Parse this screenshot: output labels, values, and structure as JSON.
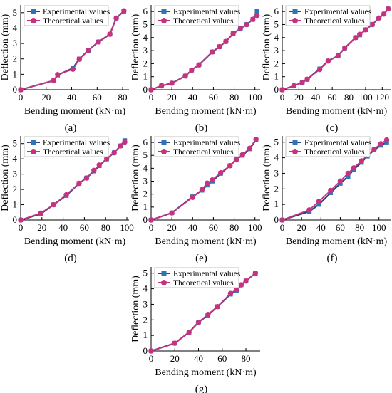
{
  "figure": {
    "xlabel": "Bending moment (kN·m)",
    "ylabel": "Deflection (mm)"
  },
  "colors": {
    "experimental": "#2e75b6",
    "experimental_line": "#2f3f7f",
    "theoretical": "#c8317e"
  },
  "legend": {
    "experimental": "Experimental values",
    "theoretical": "Theoretical values"
  },
  "chart_data": [
    {
      "type": "line",
      "panel": "(a)",
      "xlabel": "Bending moment (kN·m)",
      "ylabel": "Deflection (mm)",
      "xlim": [
        0,
        85
      ],
      "ylim": [
        0,
        5.5
      ],
      "xticks": [
        0,
        20,
        40,
        60,
        80
      ],
      "yticks": [
        0,
        1,
        2,
        3,
        4,
        5
      ],
      "legend_position": "top-left",
      "series": [
        {
          "name": "Experimental values",
          "x": [
            0,
            26,
            29,
            41,
            46,
            53,
            61,
            70,
            75,
            81
          ],
          "y": [
            0,
            0.6,
            0.95,
            1.4,
            2.0,
            2.55,
            3.1,
            3.6,
            4.65,
            5.1
          ]
        },
        {
          "name": "Theoretical values",
          "x": [
            0,
            26,
            29,
            41,
            46,
            53,
            61,
            70,
            75,
            81
          ],
          "y": [
            0,
            0.6,
            0.98,
            1.33,
            1.98,
            2.55,
            3.1,
            3.6,
            4.65,
            5.12
          ]
        }
      ]
    },
    {
      "type": "line",
      "panel": "(b)",
      "xlabel": "Bending moment (kN·m)",
      "ylabel": "Deflection (mm)",
      "xlim": [
        0,
        105
      ],
      "ylim": [
        0,
        6.5
      ],
      "xticks": [
        0,
        20,
        40,
        60,
        80,
        100
      ],
      "yticks": [
        0,
        1,
        2,
        3,
        4,
        5,
        6
      ],
      "legend_position": "top-left",
      "series": [
        {
          "name": "Experimental values",
          "x": [
            0,
            10,
            20,
            33,
            39,
            46,
            59,
            66,
            72,
            79,
            86,
            92,
            98,
            102
          ],
          "y": [
            0,
            0.3,
            0.5,
            1.05,
            1.5,
            1.9,
            2.9,
            3.3,
            3.7,
            4.3,
            4.7,
            5.0,
            5.4,
            6.0
          ]
        },
        {
          "name": "Theoretical values",
          "x": [
            0,
            10,
            20,
            33,
            39,
            46,
            59,
            66,
            72,
            79,
            86,
            92,
            98,
            102
          ],
          "y": [
            0,
            0.3,
            0.5,
            1.05,
            1.5,
            1.9,
            2.9,
            3.3,
            3.7,
            4.3,
            4.7,
            5.0,
            5.4,
            5.7
          ]
        }
      ]
    },
    {
      "type": "line",
      "panel": "(c)",
      "xlabel": "Bending moment (kN·m)",
      "ylabel": "Deflection (mm)",
      "xlim": [
        0,
        130
      ],
      "ylim": [
        0,
        6.5
      ],
      "xticks": [
        0,
        20,
        40,
        60,
        80,
        100,
        120
      ],
      "yticks": [
        0,
        1,
        2,
        3,
        4,
        5,
        6
      ],
      "legend_position": "top-left",
      "series": [
        {
          "name": "Experimental values",
          "x": [
            0,
            14,
            24,
            30,
            45,
            55,
            67,
            75,
            88,
            93,
            100,
            108,
            116,
            122,
            127
          ],
          "y": [
            0,
            0.3,
            0.55,
            0.8,
            1.6,
            2.2,
            2.6,
            3.2,
            4.0,
            4.2,
            4.6,
            5.0,
            5.5,
            5.8,
            6.2
          ]
        },
        {
          "name": "Theoretical values",
          "x": [
            0,
            14,
            24,
            30,
            45,
            55,
            67,
            75,
            88,
            93,
            100,
            108,
            116,
            122,
            127
          ],
          "y": [
            0,
            0.3,
            0.55,
            0.8,
            1.55,
            2.2,
            2.6,
            3.2,
            4.0,
            4.25,
            4.6,
            5.0,
            5.5,
            5.8,
            6.2
          ]
        }
      ]
    },
    {
      "type": "line",
      "panel": "(d)",
      "xlabel": "Bending moment (kN·m)",
      "ylabel": "Deflection (mm)",
      "xlim": [
        0,
        102
      ],
      "ylim": [
        0,
        5.5
      ],
      "xticks": [
        0,
        20,
        40,
        60,
        80,
        100
      ],
      "yticks": [
        0,
        1,
        2,
        3,
        4,
        5
      ],
      "legend_position": "top-left",
      "series": [
        {
          "name": "Experimental values",
          "x": [
            0,
            19,
            31,
            43,
            55,
            62,
            69,
            74,
            81,
            88,
            94,
            98
          ],
          "y": [
            0,
            0.4,
            1.0,
            1.6,
            2.4,
            2.75,
            3.2,
            3.55,
            4.0,
            4.4,
            4.85,
            5.2
          ]
        },
        {
          "name": "Theoretical values",
          "x": [
            0,
            19,
            31,
            43,
            55,
            62,
            69,
            74,
            81,
            88,
            94,
            98
          ],
          "y": [
            0,
            0.45,
            1.0,
            1.65,
            2.4,
            2.75,
            3.25,
            3.6,
            4.0,
            4.4,
            4.85,
            5.1
          ]
        }
      ]
    },
    {
      "type": "line",
      "panel": "(e)",
      "xlabel": "Bending moment (kN·m)",
      "ylabel": "Deflection (mm)",
      "xlim": [
        0,
        105
      ],
      "ylim": [
        0,
        6.5
      ],
      "xticks": [
        0,
        20,
        40,
        60,
        80,
        100
      ],
      "yticks": [
        0,
        1,
        2,
        3,
        4,
        5,
        6
      ],
      "legend_position": "top-left",
      "series": [
        {
          "name": "Experimental values",
          "x": [
            0,
            20,
            40,
            49,
            54,
            59,
            67,
            76,
            82,
            88,
            95,
            101
          ],
          "y": [
            0,
            0.55,
            1.8,
            2.3,
            2.7,
            3.0,
            3.6,
            4.2,
            4.7,
            5.0,
            5.5,
            6.2
          ]
        },
        {
          "name": "Theoretical values",
          "x": [
            0,
            20,
            40,
            49,
            54,
            59,
            67,
            76,
            82,
            88,
            95,
            101
          ],
          "y": [
            0,
            0.55,
            1.75,
            2.35,
            2.85,
            3.1,
            3.65,
            4.2,
            4.65,
            5.05,
            5.55,
            6.25
          ]
        }
      ]
    },
    {
      "type": "line",
      "panel": "(f)",
      "xlabel": "Bending moment (kN·m)",
      "ylabel": "Deflection (mm)",
      "xlim": [
        0,
        112
      ],
      "ylim": [
        0,
        5.4
      ],
      "xticks": [
        0,
        20,
        40,
        60,
        80,
        100
      ],
      "yticks": [
        0,
        1,
        2,
        3,
        4,
        5
      ],
      "legend_position": "top-left",
      "series": [
        {
          "name": "Experimental values",
          "x": [
            0,
            28,
            38,
            50,
            60,
            68,
            74,
            82,
            88,
            95,
            102,
            108
          ],
          "y": [
            0,
            0.55,
            1.0,
            1.75,
            2.35,
            2.8,
            3.25,
            3.7,
            4.1,
            4.5,
            4.8,
            5.0
          ]
        },
        {
          "name": "Theoretical values",
          "x": [
            0,
            28,
            38,
            50,
            60,
            68,
            74,
            82,
            88,
            95,
            102,
            108
          ],
          "y": [
            0,
            0.65,
            1.2,
            1.9,
            2.5,
            3.0,
            3.35,
            3.8,
            4.15,
            4.55,
            4.9,
            5.15
          ]
        }
      ]
    },
    {
      "type": "line",
      "panel": "(g)",
      "xlabel": "Bending moment (kN·m)",
      "ylabel": "Deflection (mm)",
      "xlim": [
        0,
        92
      ],
      "ylim": [
        0,
        5.4
      ],
      "xticks": [
        0,
        20,
        40,
        60,
        80
      ],
      "yticks": [
        0,
        1,
        2,
        3,
        4,
        5
      ],
      "legend_position": "top-left",
      "series": [
        {
          "name": "Experimental values",
          "x": [
            0,
            20,
            32,
            40,
            48,
            56,
            67,
            72,
            76,
            80,
            88
          ],
          "y": [
            0,
            0.5,
            1.2,
            1.85,
            2.3,
            2.85,
            3.65,
            3.9,
            4.25,
            4.5,
            5.0
          ]
        },
        {
          "name": "Theoretical values",
          "x": [
            0,
            20,
            32,
            40,
            48,
            56,
            67,
            72,
            76,
            80,
            88
          ],
          "y": [
            0,
            0.5,
            1.2,
            1.85,
            2.35,
            2.85,
            3.7,
            3.95,
            4.25,
            4.5,
            5.0
          ]
        }
      ]
    }
  ]
}
